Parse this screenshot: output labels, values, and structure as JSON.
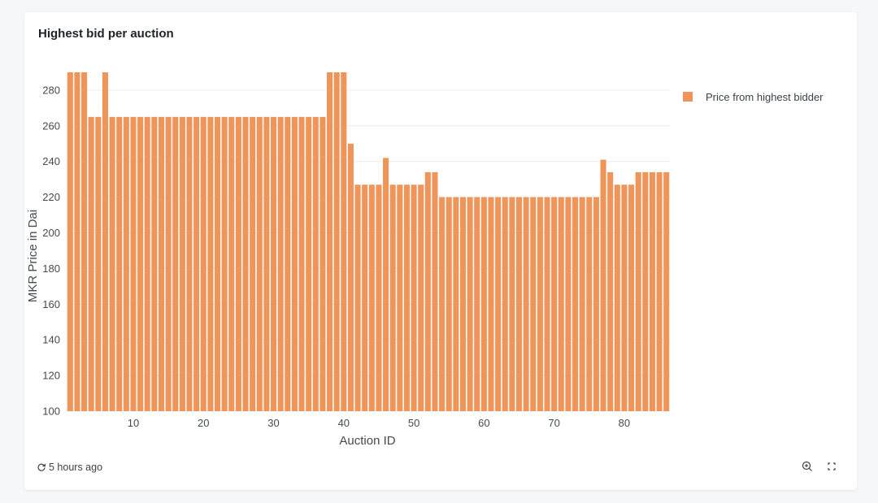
{
  "widget": {
    "title": "Highest bid per auction",
    "updated": "5 hours ago",
    "icons": [
      "refresh-icon",
      "zoom-in-icon",
      "fullscreen-icon"
    ]
  },
  "chart_data": {
    "type": "bar",
    "title": "Highest bid per auction",
    "xlabel": "Auction ID",
    "ylabel": "MKR Price in Dai",
    "ylim": [
      100,
      290
    ],
    "xlim": [
      0.5,
      86.5
    ],
    "xticks": [
      10,
      20,
      30,
      40,
      50,
      60,
      70,
      80
    ],
    "yticks": [
      100,
      120,
      140,
      160,
      180,
      200,
      220,
      240,
      260,
      280
    ],
    "grid": true,
    "legend_position": "top-right",
    "color": "#f0955a",
    "series": [
      {
        "name": "Price from highest bidder",
        "x": [
          1,
          2,
          3,
          4,
          5,
          6,
          7,
          8,
          9,
          10,
          11,
          12,
          13,
          14,
          15,
          16,
          17,
          18,
          19,
          20,
          21,
          22,
          23,
          24,
          25,
          26,
          27,
          28,
          29,
          30,
          31,
          32,
          33,
          34,
          35,
          36,
          37,
          38,
          39,
          40,
          41,
          42,
          43,
          44,
          45,
          46,
          47,
          48,
          49,
          50,
          51,
          52,
          53,
          54,
          55,
          56,
          57,
          58,
          59,
          60,
          61,
          62,
          63,
          64,
          65,
          66,
          67,
          68,
          69,
          70,
          71,
          72,
          73,
          74,
          75,
          76,
          77,
          78,
          79,
          80,
          81,
          82,
          83,
          84,
          85,
          86
        ],
        "values": [
          290,
          290,
          290,
          265,
          265,
          290,
          265,
          265,
          265,
          265,
          265,
          265,
          265,
          265,
          265,
          265,
          265,
          265,
          265,
          265,
          265,
          265,
          265,
          265,
          265,
          265,
          265,
          265,
          265,
          265,
          265,
          265,
          265,
          265,
          265,
          265,
          265,
          290,
          290,
          290,
          250,
          227,
          227,
          227,
          227,
          242,
          227,
          227,
          227,
          227,
          227,
          234,
          234,
          220,
          220,
          220,
          220,
          220,
          220,
          220,
          220,
          220,
          220,
          220,
          220,
          220,
          220,
          220,
          220,
          220,
          220,
          220,
          220,
          220,
          220,
          220,
          241,
          234,
          227,
          227,
          227,
          234,
          234,
          234,
          234,
          234
        ]
      }
    ]
  }
}
